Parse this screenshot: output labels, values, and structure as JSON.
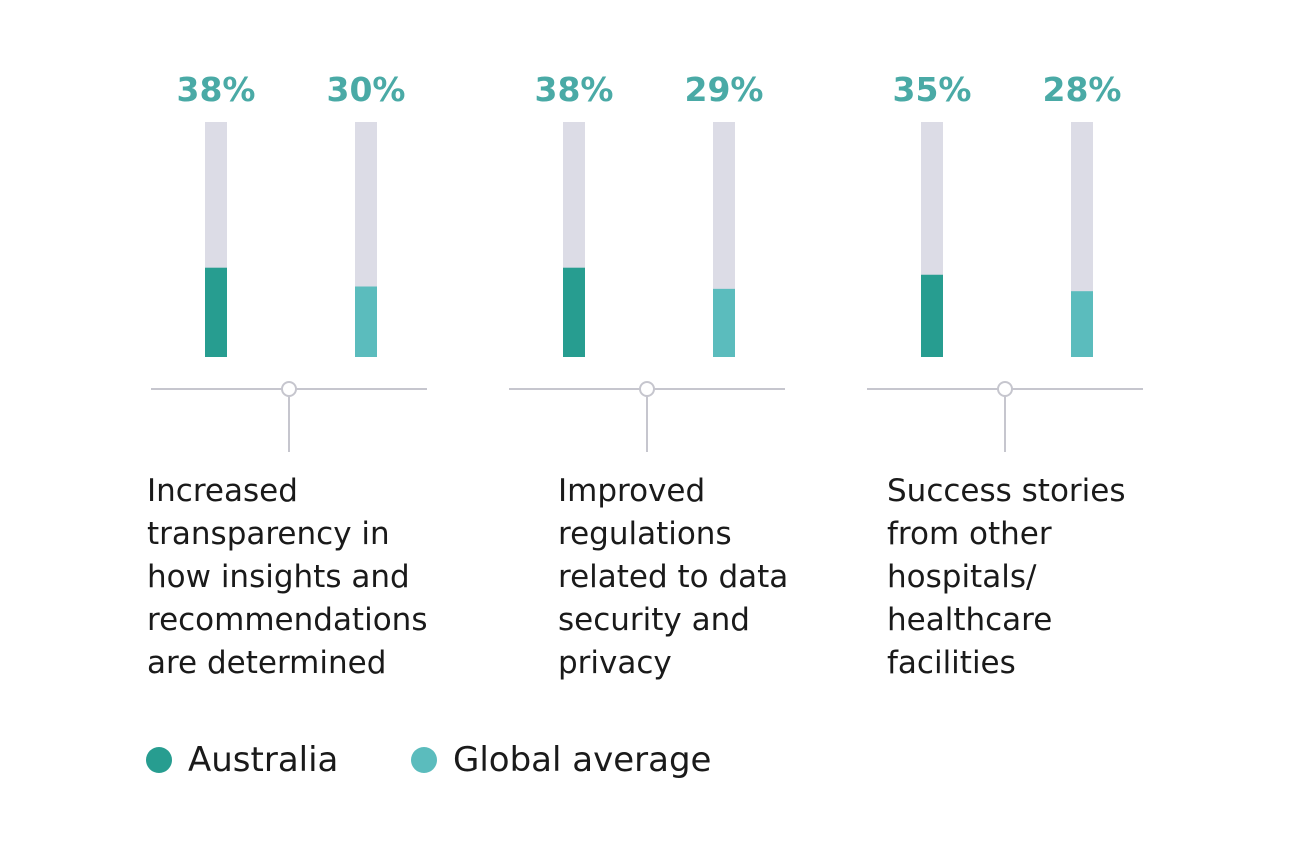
{
  "chart_data": {
    "type": "bar",
    "categories": [
      "Increased\ntransparency in\nhow insights and\nrecommendations\nare determined",
      "Improved\nregulations\nrelated to data\nsecurity and\nprivacy",
      "Success stories\nfrom other\nhospitals/\nhealthcare\nfacilities"
    ],
    "series": [
      {
        "name": "Australia",
        "values": [
          38,
          38,
          35
        ],
        "labels": [
          "38%",
          "38%",
          "35%"
        ],
        "color": "#279d90"
      },
      {
        "name": "Global average",
        "values": [
          30,
          29,
          28
        ],
        "labels": [
          "30%",
          "29%",
          "28%"
        ],
        "color": "#5bbcbd"
      }
    ],
    "ylim": [
      0,
      100
    ],
    "grid": false,
    "legend": "bottom-left",
    "track_color": "#dcdce6",
    "value_label_color": "#4aaaa6",
    "axis_color": "#c6c6ce"
  }
}
